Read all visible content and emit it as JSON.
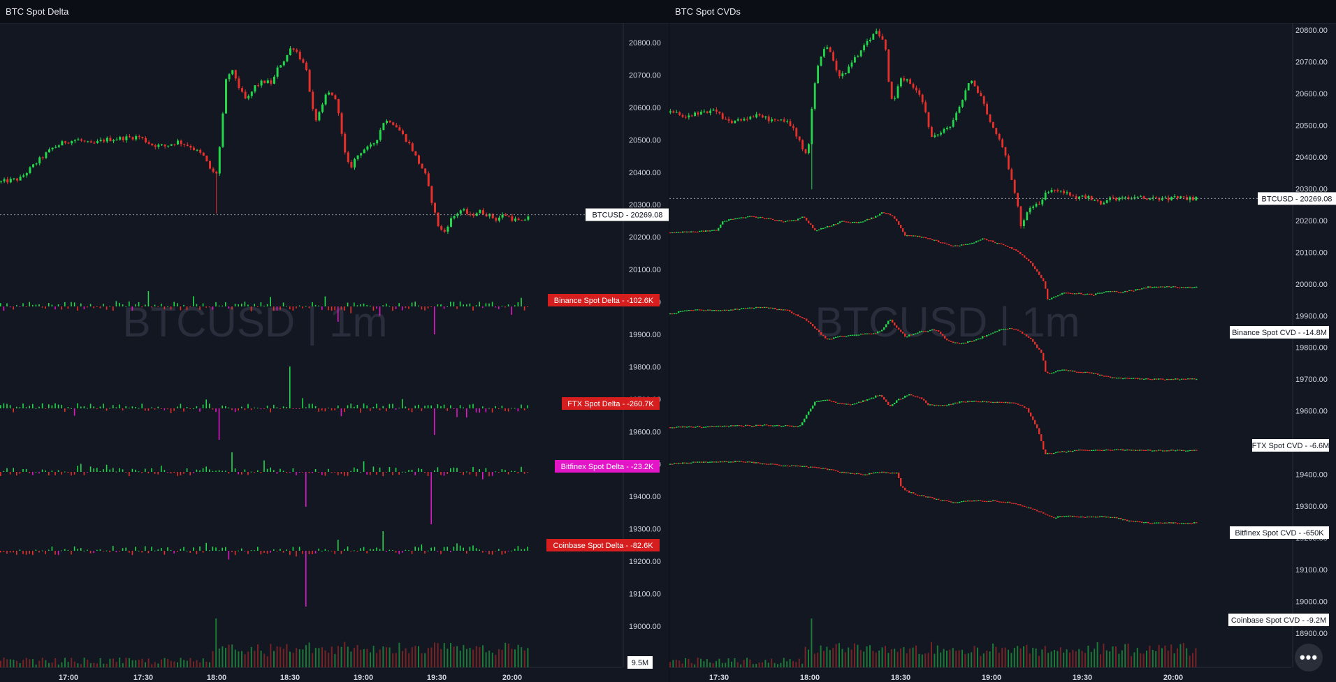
{
  "left": {
    "title": "BTC Spot Delta",
    "watermark": "BTCUSD  |  1m",
    "price_axis": [
      "20800.00",
      "20700.00",
      "20600.00",
      "20500.00",
      "20400.00",
      "20300.00",
      "20200.00",
      "20100.00",
      "20000.00",
      "19900.00",
      "19800.00",
      "19700.00",
      "19600.00",
      "19500.00",
      "19400.00",
      "19300.00",
      "19200.00",
      "19100.00",
      "19000.00"
    ],
    "time_axis": [
      "17:00",
      "17:30",
      "18:00",
      "18:30",
      "19:00",
      "19:30",
      "20:00"
    ],
    "price_label": "BTCUSD  -  20269.08",
    "volume_label": "9.5M",
    "labels": [
      {
        "text": "Binance Spot Delta  -  -102.6K",
        "color": "#d61e1e"
      },
      {
        "text": "FTX Spot Delta  -  -260.7K",
        "color": "#d61e1e"
      },
      {
        "text": "Bitfinex Spot Delta  -  -23.2K",
        "color": "#e215c7"
      },
      {
        "text": "Coinbase Spot Delta  -  -82.6K",
        "color": "#d61e1e"
      }
    ]
  },
  "right": {
    "title": "BTC Spot CVDs",
    "watermark": "BTCUSD  |  1m",
    "price_axis": [
      "20800.00",
      "20700.00",
      "20600.00",
      "20500.00",
      "20400.00",
      "20300.00",
      "20200.00",
      "20100.00",
      "20000.00",
      "19900.00",
      "19800.00",
      "19700.00",
      "19600.00",
      "19500.00",
      "19400.00",
      "19300.00",
      "19200.00",
      "19100.00",
      "19000.00",
      "18900.00"
    ],
    "time_axis": [
      "17:30",
      "18:00",
      "18:30",
      "19:00",
      "19:30",
      "20:00"
    ],
    "price_label": "BTCUSD  -  20269.08",
    "labels": [
      {
        "text": "Binance Spot CVD  -  -14.8M"
      },
      {
        "text": "FTX Spot CVD  -  -6.6M"
      },
      {
        "text": "Bitfinex Spot CVD  -  -650K"
      },
      {
        "text": "Coinbase Spot CVD  -  -9.2M"
      }
    ]
  },
  "menu_icon": "more-horizontal-icon",
  "menu_glyph": "•••",
  "chart_data": [
    {
      "type": "candlestick",
      "title": "BTC Spot Delta",
      "ylim": [
        18930,
        20850
      ],
      "price_path": [
        [
          0,
          20370
        ],
        [
          22,
          20380
        ],
        [
          45,
          20440
        ],
        [
          60,
          20475
        ],
        [
          75,
          20495
        ],
        [
          90,
          20500
        ],
        [
          105,
          20485
        ],
        [
          120,
          20500
        ],
        [
          140,
          20505
        ],
        [
          160,
          20510
        ],
        [
          175,
          20485
        ],
        [
          190,
          20480
        ],
        [
          205,
          20495
        ],
        [
          220,
          20480
        ],
        [
          235,
          20450
        ],
        [
          245,
          20400
        ],
        [
          250,
          20395
        ],
        [
          255,
          20500
        ],
        [
          262,
          20700
        ],
        [
          270,
          20710
        ],
        [
          278,
          20650
        ],
        [
          285,
          20620
        ],
        [
          295,
          20665
        ],
        [
          305,
          20680
        ],
        [
          315,
          20675
        ],
        [
          322,
          20725
        ],
        [
          330,
          20750
        ],
        [
          338,
          20790
        ],
        [
          344,
          20770
        ],
        [
          350,
          20740
        ],
        [
          355,
          20720
        ],
        [
          360,
          20610
        ],
        [
          365,
          20560
        ],
        [
          372,
          20590
        ],
        [
          378,
          20645
        ],
        [
          386,
          20640
        ],
        [
          392,
          20590
        ],
        [
          398,
          20470
        ],
        [
          405,
          20410
        ],
        [
          412,
          20445
        ],
        [
          420,
          20470
        ],
        [
          428,
          20475
        ],
        [
          436,
          20500
        ],
        [
          444,
          20555
        ],
        [
          452,
          20560
        ],
        [
          460,
          20540
        ],
        [
          468,
          20510
        ],
        [
          476,
          20480
        ],
        [
          484,
          20435
        ],
        [
          492,
          20400
        ],
        [
          500,
          20315
        ],
        [
          507,
          20240
        ],
        [
          514,
          20210
        ],
        [
          521,
          20250
        ],
        [
          528,
          20270
        ],
        [
          535,
          20285
        ],
        [
          545,
          20265
        ],
        [
          555,
          20280
        ],
        [
          565,
          20270
        ],
        [
          575,
          20255
        ],
        [
          585,
          20270
        ],
        [
          595,
          20255
        ],
        [
          605,
          20245
        ],
        [
          612,
          20265
        ],
        [
          618,
          20275
        ]
      ],
      "last_price": 20269.08,
      "delta_series": [
        {
          "name": "Binance Spot Delta",
          "last": "-102.6K"
        },
        {
          "name": "FTX Spot Delta",
          "last": "-260.7K"
        },
        {
          "name": "Bitfinex Spot Delta",
          "last": "-23.2K"
        },
        {
          "name": "Coinbase Spot Delta",
          "last": "-82.6K"
        }
      ],
      "volume_last": "9.5M",
      "x_ticks": [
        "17:00",
        "17:30",
        "18:00",
        "18:30",
        "19:00",
        "19:30",
        "20:00"
      ]
    },
    {
      "type": "candlestick",
      "title": "BTC Spot CVDs",
      "ylim": [
        18870,
        20850
      ],
      "price_path": [
        [
          0,
          20540
        ],
        [
          20,
          20530
        ],
        [
          40,
          20535
        ],
        [
          60,
          20545
        ],
        [
          80,
          20510
        ],
        [
          100,
          20520
        ],
        [
          120,
          20530
        ],
        [
          140,
          20515
        ],
        [
          160,
          20510
        ],
        [
          170,
          20480
        ],
        [
          180,
          20430
        ],
        [
          187,
          20400
        ],
        [
          194,
          20590
        ],
        [
          200,
          20680
        ],
        [
          206,
          20720
        ],
        [
          212,
          20760
        ],
        [
          222,
          20700
        ],
        [
          232,
          20650
        ],
        [
          242,
          20680
        ],
        [
          252,
          20710
        ],
        [
          262,
          20740
        ],
        [
          272,
          20770
        ],
        [
          280,
          20800
        ],
        [
          287,
          20780
        ],
        [
          293,
          20740
        ],
        [
          298,
          20620
        ],
        [
          304,
          20560
        ],
        [
          312,
          20640
        ],
        [
          320,
          20645
        ],
        [
          330,
          20620
        ],
        [
          338,
          20610
        ],
        [
          346,
          20560
        ],
        [
          354,
          20470
        ],
        [
          362,
          20465
        ],
        [
          372,
          20480
        ],
        [
          382,
          20500
        ],
        [
          390,
          20540
        ],
        [
          398,
          20580
        ],
        [
          408,
          20640
        ],
        [
          416,
          20620
        ],
        [
          424,
          20590
        ],
        [
          434,
          20520
        ],
        [
          444,
          20470
        ],
        [
          454,
          20430
        ],
        [
          464,
          20340
        ],
        [
          472,
          20260
        ],
        [
          478,
          20180
        ],
        [
          486,
          20230
        ],
        [
          494,
          20250
        ],
        [
          502,
          20245
        ],
        [
          510,
          20280
        ],
        [
          520,
          20300
        ],
        [
          530,
          20290
        ],
        [
          540,
          20290
        ],
        [
          550,
          20270
        ],
        [
          560,
          20280
        ],
        [
          570,
          20270
        ],
        [
          580,
          20260
        ],
        [
          590,
          20250
        ],
        [
          600,
          20270
        ],
        [
          610,
          20270
        ]
      ],
      "last_price": 20269.08,
      "cvd_series": [
        {
          "name": "Binance Spot CVD",
          "last": "-14.8M",
          "path": [
            [
              0,
              313
            ],
            [
              30,
              312
            ],
            [
              60,
              310
            ],
            [
              68,
              296
            ],
            [
              90,
              292
            ],
            [
              100,
              290
            ],
            [
              120,
              292
            ],
            [
              145,
              297
            ],
            [
              160,
              296
            ],
            [
              170,
              290
            ],
            [
              185,
              310
            ],
            [
              205,
              303
            ],
            [
              220,
              297
            ],
            [
              240,
              299
            ],
            [
              258,
              292
            ],
            [
              272,
              284
            ],
            [
              285,
              290
            ],
            [
              300,
              317
            ],
            [
              320,
              319
            ],
            [
              340,
              325
            ],
            [
              360,
              333
            ],
            [
              380,
              330
            ],
            [
              400,
              322
            ],
            [
              420,
              329
            ],
            [
              440,
              337
            ],
            [
              460,
              355
            ],
            [
              478,
              385
            ],
            [
              482,
              410
            ],
            [
              500,
              400
            ],
            [
              520,
              400
            ],
            [
              540,
              402
            ],
            [
              560,
              397
            ],
            [
              580,
              398
            ],
            [
              600,
              394
            ],
            [
              610,
              391
            ]
          ]
        },
        {
          "name": "FTX Spot CVD",
          "last": "-6.6M",
          "path": [
            [
              0,
              430
            ],
            [
              20,
              424
            ],
            [
              40,
              424
            ],
            [
              60,
              425
            ],
            [
              90,
              422
            ],
            [
              120,
              420
            ],
            [
              150,
              425
            ],
            [
              170,
              436
            ],
            [
              185,
              450
            ],
            [
              200,
              467
            ],
            [
              215,
              462
            ],
            [
              235,
              459
            ],
            [
              258,
              458
            ],
            [
              270,
              454
            ],
            [
              280,
              437
            ],
            [
              300,
              462
            ],
            [
              320,
              455
            ],
            [
              340,
              452
            ],
            [
              355,
              469
            ],
            [
              370,
              473
            ],
            [
              390,
              467
            ],
            [
              410,
              457
            ],
            [
              425,
              450
            ],
            [
              440,
              451
            ],
            [
              460,
              465
            ],
            [
              475,
              487
            ],
            [
              480,
              515
            ],
            [
              500,
              510
            ],
            [
              520,
              512
            ],
            [
              540,
              515
            ],
            [
              560,
              520
            ],
            [
              590,
              522
            ],
            [
              610,
              523
            ]
          ]
        },
        {
          "name": "Bitfinex Spot CVD",
          "last": "-650K",
          "path": [
            [
              0,
              592
            ],
            [
              40,
              591
            ],
            [
              80,
              590
            ],
            [
              120,
              589
            ],
            [
              150,
              590
            ],
            [
              165,
              591
            ],
            [
              175,
              573
            ],
            [
              185,
              555
            ],
            [
              200,
              552
            ],
            [
              215,
              558
            ],
            [
              230,
              560
            ],
            [
              250,
              553
            ],
            [
              268,
              545
            ],
            [
              280,
              562
            ],
            [
              290,
              553
            ],
            [
              305,
              545
            ],
            [
              320,
              550
            ],
            [
              330,
              560
            ],
            [
              350,
              561
            ],
            [
              370,
              556
            ],
            [
              390,
              555
            ],
            [
              410,
              556
            ],
            [
              440,
              557
            ],
            [
              455,
              565
            ],
            [
              470,
              595
            ],
            [
              478,
              630
            ],
            [
              500,
              627
            ],
            [
              520,
              625
            ],
            [
              540,
              625
            ],
            [
              560,
              624
            ],
            [
              590,
              625
            ],
            [
              610,
              625
            ]
          ]
        },
        {
          "name": "Coinbase Spot CVD",
          "last": "-9.2M",
          "path": [
            [
              0,
              645
            ],
            [
              30,
              642
            ],
            [
              60,
              642
            ],
            [
              90,
              641
            ],
            [
              120,
              644
            ],
            [
              150,
              647
            ],
            [
              180,
              649
            ],
            [
              200,
              652
            ],
            [
              220,
              657
            ],
            [
              250,
              659
            ],
            [
              270,
              656
            ],
            [
              290,
              658
            ],
            [
              295,
              678
            ],
            [
              305,
              685
            ],
            [
              320,
              690
            ],
            [
              340,
              695
            ],
            [
              360,
              699
            ],
            [
              380,
              698
            ],
            [
              400,
              697
            ],
            [
              420,
              698
            ],
            [
              440,
              701
            ],
            [
              460,
              708
            ],
            [
              475,
              715
            ],
            [
              490,
              721
            ],
            [
              510,
              719
            ],
            [
              530,
              720
            ],
            [
              550,
              720
            ],
            [
              570,
              722
            ],
            [
              590,
              727
            ],
            [
              610,
              729
            ]
          ]
        }
      ],
      "x_ticks": [
        "17:30",
        "18:00",
        "18:30",
        "19:00",
        "19:30",
        "20:00"
      ]
    }
  ]
}
